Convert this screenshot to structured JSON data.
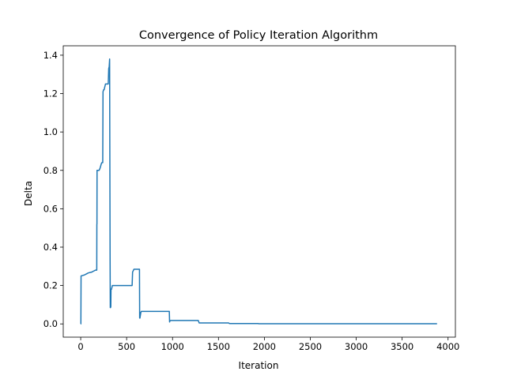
{
  "chart_data": {
    "type": "line",
    "title": "Convergence of Policy Iteration Algorithm",
    "xlabel": "Iteration",
    "ylabel": "Delta",
    "xlim": [
      -190,
      4080
    ],
    "ylim": [
      -0.069,
      1.449
    ],
    "grid": false,
    "x_ticks": [
      0,
      500,
      1000,
      1500,
      2000,
      2500,
      3000,
      3500,
      4000
    ],
    "y_ticks": [
      0.0,
      0.2,
      0.4,
      0.6,
      0.8,
      1.0,
      1.2,
      1.4
    ],
    "x_tick_labels": [
      "0",
      "500",
      "1000",
      "1500",
      "2000",
      "2500",
      "3000",
      "3500",
      "4000"
    ],
    "y_tick_labels": [
      "0.0",
      "0.2",
      "0.4",
      "0.6",
      "0.8",
      "1.0",
      "1.2",
      "1.4"
    ],
    "series_color": "#1f77b4",
    "series": [
      {
        "x": [
          0,
          2,
          4,
          5,
          40,
          60,
          80,
          100,
          120,
          140,
          160,
          175,
          176,
          177,
          178,
          180,
          185,
          200,
          210,
          225,
          230,
          240,
          243,
          250,
          255,
          270,
          280,
          300,
          305,
          310,
          315,
          320,
          322,
          325,
          328,
          330,
          335,
          340,
          345,
          355,
          370,
          400,
          450,
          500,
          560,
          565,
          580,
          620,
          640,
          642,
          645,
          650,
          655,
          660,
          670,
          700,
          800,
          900,
          965,
          968,
          970,
          980,
          1000,
          1100,
          1280,
          1290,
          1300,
          1400,
          1500,
          1610,
          1620,
          1700,
          1800,
          1930,
          1940,
          2000,
          2500,
          3000,
          3500,
          3880
        ],
        "values": [
          0.0,
          0.0,
          0.25,
          0.25,
          0.255,
          0.26,
          0.265,
          0.268,
          0.27,
          0.275,
          0.28,
          0.28,
          0.52,
          0.52,
          0.8,
          0.8,
          0.8,
          0.8,
          0.81,
          0.835,
          0.84,
          0.84,
          1.21,
          1.22,
          1.22,
          1.25,
          1.25,
          1.25,
          1.33,
          1.34,
          1.38,
          0.35,
          0.085,
          0.085,
          0.09,
          0.18,
          0.18,
          0.19,
          0.2,
          0.2,
          0.2,
          0.2,
          0.2,
          0.2,
          0.2,
          0.27,
          0.285,
          0.285,
          0.285,
          0.03,
          0.03,
          0.045,
          0.06,
          0.065,
          0.065,
          0.065,
          0.065,
          0.065,
          0.065,
          0.01,
          0.015,
          0.018,
          0.018,
          0.018,
          0.018,
          0.005,
          0.005,
          0.005,
          0.005,
          0.005,
          0.002,
          0.002,
          0.002,
          0.002,
          0.0008,
          0.0008,
          0.0008,
          0.0008,
          0.0008,
          0.0008
        ]
      }
    ]
  }
}
